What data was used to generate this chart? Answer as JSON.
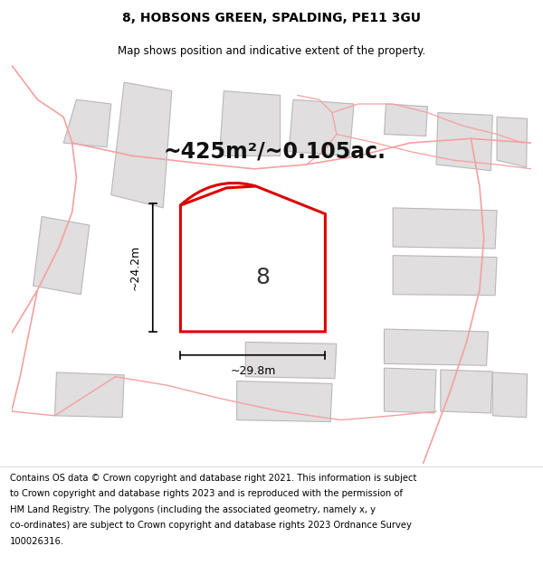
{
  "title_line1": "8, HOBSONS GREEN, SPALDING, PE11 3GU",
  "title_line2": "Map shows position and indicative extent of the property.",
  "area_text": "~425m²/~0.105ac.",
  "label_number": "8",
  "dim_width": "~29.8m",
  "dim_height": "~24.2m",
  "footer_lines": [
    "Contains OS data © Crown copyright and database right 2021. This information is subject",
    "to Crown copyright and database rights 2023 and is reproduced with the permission of",
    "HM Land Registry. The polygons (including the associated geometry, namely x, y",
    "co-ordinates) are subject to Crown copyright and database rights 2023 Ordnance Survey",
    "100026316."
  ],
  "map_bg": "#ffffff",
  "plot_facecolor": "#ffffff",
  "red_color": "#dd0000",
  "pink_road": "#f5a0a0",
  "gray_fill": "#e0dede",
  "gray_border": "#b8b8b8",
  "white": "#ffffff",
  "black": "#000000",
  "title_fontsize": 10,
  "subtitle_fontsize": 8.5,
  "area_fontsize": 17,
  "label_fontsize": 18,
  "dim_fontsize": 9,
  "footer_fontsize": 7.2
}
